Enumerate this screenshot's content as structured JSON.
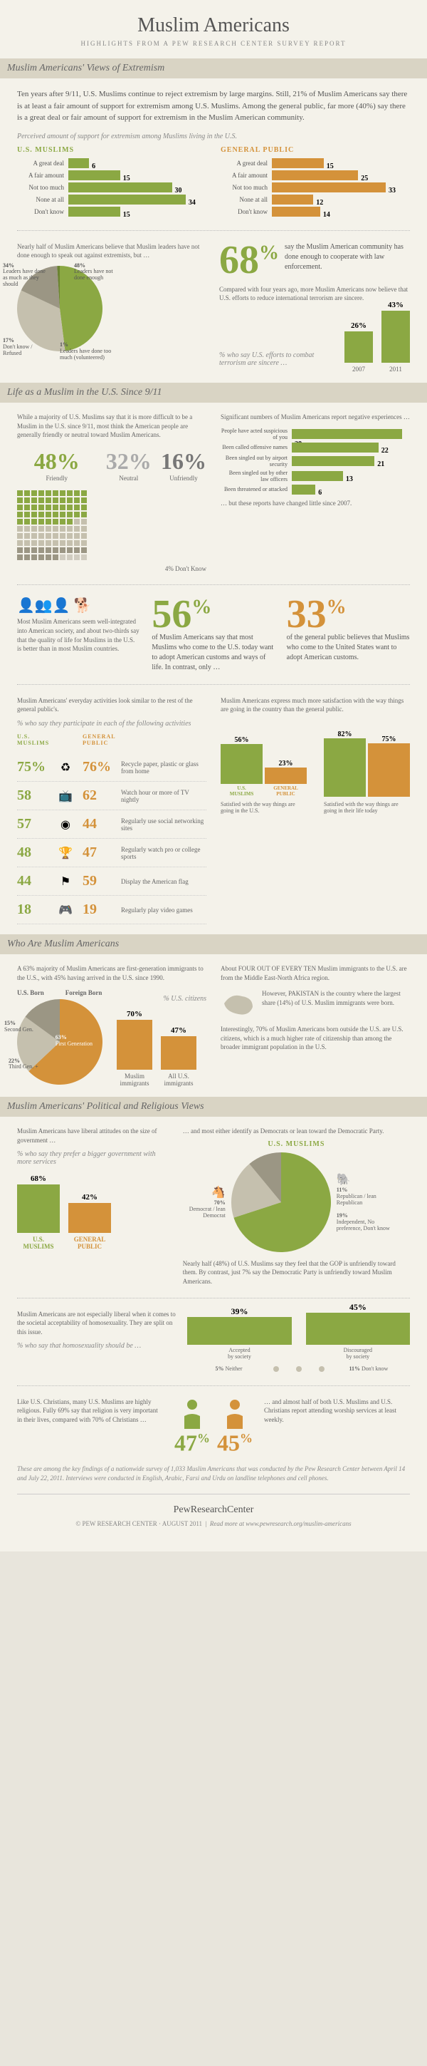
{
  "title": "Muslim Americans",
  "subtitle": "HIGHLIGHTS FROM A PEW RESEARCH CENTER SURVEY REPORT",
  "sections": {
    "s1": {
      "header": "Muslim Americans' Views of Extremism",
      "intro": "Ten years after 9/11, U.S. Muslims continue to reject extremism by large margins. Still, 21% of Muslim Americans say there is at least a fair amount of support for extremism among U.S. Muslims. Among the general public, far more (40%) say there is a great deal or fair amount of support for extremism in the Muslim American community.",
      "caption": "Perceived amount of support for extremism among Muslims living in the U.S.",
      "left_label": "U.S. MUSLIMS",
      "right_label": "GENERAL PUBLIC",
      "categories": [
        "A great deal",
        "A fair amount",
        "Not too much",
        "None at all",
        "Don't know"
      ],
      "muslims": [
        6,
        15,
        30,
        34,
        15
      ],
      "public": [
        15,
        25,
        33,
        12,
        14
      ],
      "colors": {
        "muslim": "#8ba843",
        "public": "#d4923a",
        "muslim_dark": "#6b8332",
        "public_dark": "#b5792a"
      }
    },
    "s1b": {
      "left_text": "Nearly half of Muslim Americans believe that Muslim leaders have not done enough to speak out against extremists, but …",
      "pie": {
        "slices": [
          {
            "label": "Leaders have not done enough",
            "val": 48,
            "color": "#8ba843"
          },
          {
            "label": "Leaders have done as much as they should",
            "val": 34,
            "color": "#c5c0ae"
          },
          {
            "label": "Don't know / Refused",
            "val": 17,
            "color": "#9b9684"
          },
          {
            "label": "Leaders have done too much (volunteered)",
            "val": 1,
            "color": "#6b8332"
          }
        ]
      },
      "big": "68",
      "big_text": "say the Muslim American community has done enough to cooperate with law enforcement.",
      "comp_text": "Compared with four years ago, more Muslim Americans now believe that U.S. efforts to reduce international terrorism are sincere.",
      "comp_caption": "% who say U.S. efforts to combat terrorism are sincere …",
      "bars": [
        {
          "year": "2007",
          "val": 26
        },
        {
          "year": "2011",
          "val": 43
        }
      ]
    },
    "s2": {
      "header": "Life as a Muslim in the U.S. Since 9/11",
      "left_text": "While a majority of U.S. Muslims say that it is more difficult to be a Muslim in the U.S. since 9/11, most think the American people are generally friendly or neutral toward Muslim Americans.",
      "tri": [
        {
          "val": "48%",
          "label": "Friendly",
          "color": "#8ba843"
        },
        {
          "val": "32%",
          "label": "Neutral",
          "color": "#aaa"
        },
        {
          "val": "16%",
          "label": "Unfriendly",
          "color": "#777"
        }
      ],
      "tri_foot": "4% Don't Know",
      "right_text": "Significant numbers of Muslim Americans report negative experiences …",
      "neg_cats": [
        "People have acted suspicious of you",
        "Been called offensive names",
        "Been singled out by airport security",
        "Been singled out by other law officers",
        "Been threatened or attacked"
      ],
      "neg_vals": [
        28,
        22,
        21,
        13,
        6
      ],
      "neg_foot": "… but these reports have changed little since 2007."
    },
    "s2b": {
      "left_text": "Most Muslim Americans seem well-integrated into American society, and about two-thirds say that the quality of life for Muslims in the U.S. is better than in most Muslim countries.",
      "mid_val": "56",
      "mid_text": "of Muslim Americans say that most Muslims who come to the U.S. today want to adopt American customs and ways of life. In contrast, only …",
      "right_val": "33",
      "right_text": "of the general public believes that Muslims who come to the United States want to adopt American customs."
    },
    "s2c": {
      "left_text": "Muslim Americans' everyday activities look similar to the rest of the general public's.",
      "left_caption": "% who say they participate in each of the following activities",
      "h1": "U.S. MUSLIMS",
      "h2": "GENERAL PUBLIC",
      "rows": [
        {
          "m": "75%",
          "p": "76%",
          "icon": "recycle",
          "label": "Recycle paper, plastic or glass from home"
        },
        {
          "m": "58",
          "p": "62",
          "icon": "tv",
          "label": "Watch hour or more of TV nightly"
        },
        {
          "m": "57",
          "p": "44",
          "icon": "network",
          "label": "Regularly use social networking sites"
        },
        {
          "m": "48",
          "p": "47",
          "icon": "sports",
          "label": "Regularly watch pro or college sports"
        },
        {
          "m": "44",
          "p": "59",
          "icon": "flag",
          "label": "Display the American flag"
        },
        {
          "m": "18",
          "p": "19",
          "icon": "game",
          "label": "Regularly play video games"
        }
      ],
      "right_text": "Muslim Americans express much more satisfaction with the way things are going in the country than the general public.",
      "sat": {
        "groups": [
          {
            "title": "Satisfied with the way things are going in the U.S.",
            "m": 56,
            "p": 23
          },
          {
            "title": "Satisfied with the way things are going in their life today",
            "m": 82,
            "p": 75
          }
        ],
        "ml": "U.S. MUSLIMS",
        "pl": "GENERAL PUBLIC"
      }
    },
    "s3": {
      "header": "Who Are Muslim Americans",
      "left_text": "A 63% majority of Muslim Americans are first-generation immigrants to the U.S., with 45% having arrived in the U.S. since 1990.",
      "caption": "% U.S. citizens",
      "pie": {
        "slices": [
          {
            "label": "First Generation",
            "val": 63,
            "color": "#d4923a"
          },
          {
            "label": "Third Gen. +",
            "val": 22,
            "color": "#c5c0ae"
          },
          {
            "label": "Second Gen.",
            "val": 15,
            "color": "#9b9684"
          }
        ]
      },
      "pie_labels": {
        "us": "U.S. Born",
        "fb": "Foreign Born"
      },
      "bars": [
        {
          "label": "Muslim immigrants",
          "val": 70
        },
        {
          "label": "All U.S. immigrants",
          "val": 47
        }
      ],
      "r1": "About FOUR OUT OF EVERY TEN Muslim immigrants to the U.S. are from the Middle East-North Africa region.",
      "r2": "However, PAKISTAN is the country where the largest share (14%) of U.S. Muslim immigrants were born.",
      "r3": "Interestingly, 70% of Muslim Americans born outside the U.S. are U.S. citizens, which is a much higher rate of citizenship than among the broader immigrant population in the U.S."
    },
    "s4": {
      "header": "Muslim Americans' Political and Religious Views",
      "left_text": "Muslim Americans have liberal attitudes on the size of government …",
      "caption": "% who say they prefer a bigger government with more services",
      "bars": [
        {
          "label": "U.S. MUSLIMS",
          "val": 68,
          "color": "#8ba843"
        },
        {
          "label": "GENERAL PUBLIC",
          "val": 42,
          "color": "#d4923a"
        }
      ],
      "right_text": "… and most either identify as Democrats or lean toward the Democratic Party.",
      "pie_label": "U.S. MUSLIMS",
      "pie": {
        "slices": [
          {
            "label": "Democrat / lean Democrat",
            "val": 70,
            "color": "#8ba843"
          },
          {
            "label": "Independent, No preference, Don't know",
            "val": 19,
            "color": "#c5c0ae"
          },
          {
            "label": "Republican / lean Republican",
            "val": 11,
            "color": "#9b9684"
          }
        ]
      },
      "foot": "Nearly half (48%) of U.S. Muslims say they feel that the GOP is unfriendly toward them. By contrast, just 7% say the Democratic Party is unfriendly toward Muslim Americans."
    },
    "s4b": {
      "text": "Muslim Americans are not especially liberal when it comes to the societal acceptability of homosexuality. They are split on this issue.",
      "caption": "% who say that homosexuality should be …",
      "items": [
        {
          "label": "Accepted by society",
          "val": 39
        },
        {
          "label": "Discouraged by society",
          "val": 45
        },
        {
          "label": "Neither",
          "val": 5
        },
        {
          "label": "Don't know",
          "val": 11
        }
      ]
    },
    "s4c": {
      "left": "Like U.S. Christians, many U.S. Muslims are highly religious. Fully 69% say that religion is very important in their lives, compared with 70% of Christians …",
      "m": "47",
      "c": "45",
      "right": "… and almost half of both U.S. Muslims and U.S. Christians report attending worship services at least weekly."
    },
    "footnote": "These are among the key findings of a nationwide survey of 1,033 Muslim Americans that was conducted by the Pew Research Center between April 14 and July 22, 2011. Interviews were conducted in English, Arabic, Farsi and Urdu on landline telephones and cell phones.",
    "footer": {
      "brand": "PewResearchCenter",
      "copy": "© PEW RESEARCH CENTER · AUGUST 2011",
      "link": "Read more at www.pewresearch.org/muslim-americans"
    }
  }
}
